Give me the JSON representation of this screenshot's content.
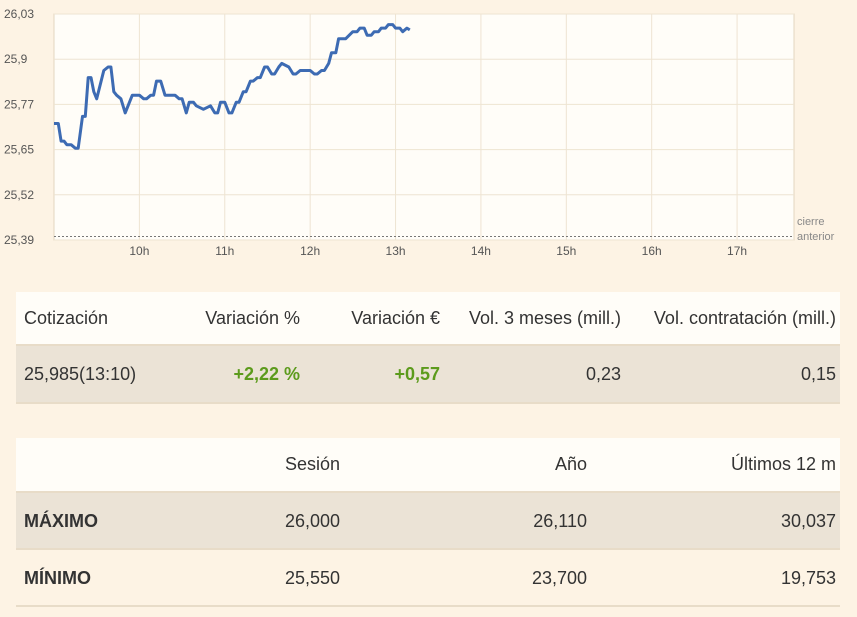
{
  "chart_data": {
    "type": "line",
    "x_ticks": [
      "10h",
      "11h",
      "12h",
      "13h",
      "14h",
      "15h",
      "16h",
      "17h"
    ],
    "y_ticks": [
      "26,03",
      "25,9",
      "25,77",
      "25,65",
      "25,52",
      "25,39"
    ],
    "ylim": [
      25.39,
      26.03
    ],
    "xlim": [
      "09:00",
      "17:40"
    ],
    "reference_line": {
      "label_lines": [
        "cierre",
        "anterior"
      ],
      "value": 25.4
    },
    "line_color": "#3d6bb3",
    "series": [
      {
        "x": [
          "09:00",
          "09:03",
          "09:05",
          "09:07",
          "09:09",
          "09:12",
          "09:15",
          "09:17",
          "09:20",
          "09:22",
          "09:24",
          "09:26",
          "09:28",
          "09:30",
          "09:35",
          "09:38",
          "09:40",
          "09:42",
          "09:44",
          "09:47",
          "09:50",
          "09:55",
          "10:00",
          "10:03",
          "10:05",
          "10:08",
          "10:10",
          "10:12",
          "10:15",
          "10:18",
          "10:20",
          "10:25",
          "10:28",
          "10:30",
          "10:33",
          "10:35",
          "10:38",
          "10:40",
          "10:45",
          "10:50",
          "10:53",
          "10:55",
          "10:57",
          "11:00",
          "11:03",
          "11:05",
          "11:08",
          "11:10",
          "11:13",
          "11:15",
          "11:18",
          "11:20",
          "11:23",
          "11:25",
          "11:28",
          "11:30",
          "11:33",
          "11:35",
          "11:38",
          "11:40",
          "11:45",
          "11:48",
          "11:50",
          "11:53",
          "11:55",
          "11:58",
          "12:00",
          "12:03",
          "12:05",
          "12:08",
          "12:10",
          "12:13",
          "12:15",
          "12:18",
          "12:20",
          "12:25",
          "12:30",
          "12:33",
          "12:35",
          "12:38",
          "12:40",
          "12:43",
          "12:45",
          "12:48",
          "12:50",
          "12:53",
          "12:55",
          "12:58",
          "13:00",
          "13:03",
          "13:05",
          "13:08",
          "13:10"
        ],
        "y": [
          25.72,
          25.72,
          25.67,
          25.67,
          25.66,
          25.66,
          25.65,
          25.65,
          25.74,
          25.74,
          25.85,
          25.85,
          25.81,
          25.79,
          25.87,
          25.88,
          25.88,
          25.81,
          25.8,
          25.79,
          25.75,
          25.8,
          25.8,
          25.79,
          25.79,
          25.8,
          25.8,
          25.84,
          25.84,
          25.8,
          25.8,
          25.8,
          25.79,
          25.79,
          25.75,
          25.78,
          25.78,
          25.77,
          25.76,
          25.77,
          25.75,
          25.75,
          25.78,
          25.78,
          25.75,
          25.75,
          25.78,
          25.78,
          25.81,
          25.81,
          25.84,
          25.84,
          25.85,
          25.85,
          25.88,
          25.88,
          25.86,
          25.86,
          25.88,
          25.89,
          25.88,
          25.86,
          25.86,
          25.87,
          25.87,
          25.87,
          25.87,
          25.86,
          25.86,
          25.87,
          25.87,
          25.89,
          25.92,
          25.92,
          25.96,
          25.96,
          25.98,
          25.98,
          25.99,
          25.99,
          25.97,
          25.97,
          25.98,
          25.98,
          25.99,
          25.99,
          26.0,
          26.0,
          25.99,
          25.99,
          25.98,
          25.99,
          25.985
        ]
      }
    ]
  },
  "quote_table": {
    "headers": [
      "Cotización",
      "Variación %",
      "Variación €",
      "Vol. 3 meses (mill.)",
      "Vol. contratación (mill.)"
    ],
    "row": [
      "25,985(13:10)",
      "+2,22 %",
      "+0,57",
      "0,23",
      "0,15"
    ]
  },
  "range_table": {
    "headers": [
      "",
      "Sesión",
      "Año",
      "Últimos 12 m"
    ],
    "rows": [
      [
        "MÁXIMO",
        "26,000",
        "26,110",
        "30,037"
      ],
      [
        "MÍNIMO",
        "25,550",
        "23,700",
        "19,753"
      ]
    ]
  }
}
